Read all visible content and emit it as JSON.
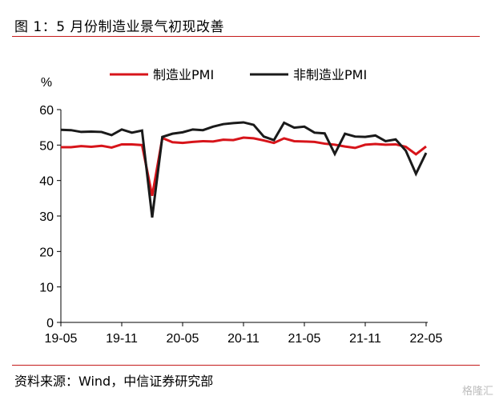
{
  "header": {
    "title": "图 1：5 月份制造业景气初现改善"
  },
  "footer": {
    "source": "资料来源：Wind，中信证券研究部",
    "watermark": "格隆汇"
  },
  "chart_data": {
    "type": "line",
    "ylabel": "%",
    "ylim": [
      0,
      60
    ],
    "yticks": [
      0,
      10,
      20,
      30,
      40,
      50,
      60
    ],
    "xtick_labels": [
      "19-05",
      "19-11",
      "20-05",
      "20-11",
      "21-05",
      "21-11",
      "22-05"
    ],
    "x": [
      "19-05",
      "19-06",
      "19-07",
      "19-08",
      "19-09",
      "19-10",
      "19-11",
      "19-12",
      "20-01",
      "20-02",
      "20-03",
      "20-04",
      "20-05",
      "20-06",
      "20-07",
      "20-08",
      "20-09",
      "20-10",
      "20-11",
      "20-12",
      "21-01",
      "21-02",
      "21-03",
      "21-04",
      "21-05",
      "21-06",
      "21-07",
      "21-08",
      "21-09",
      "21-10",
      "21-11",
      "21-12",
      "22-01",
      "22-02",
      "22-03",
      "22-04",
      "22-05"
    ],
    "legend_position": "top-center",
    "series": [
      {
        "name": "制造业PMI",
        "color": "#d7141a",
        "values": [
          49.4,
          49.4,
          49.7,
          49.5,
          49.8,
          49.3,
          50.2,
          50.2,
          50.0,
          35.7,
          52.0,
          50.8,
          50.6,
          50.9,
          51.1,
          51.0,
          51.5,
          51.4,
          52.1,
          51.9,
          51.3,
          50.6,
          51.9,
          51.1,
          51.0,
          50.9,
          50.4,
          50.1,
          49.6,
          49.2,
          50.1,
          50.3,
          50.1,
          50.2,
          49.5,
          47.4,
          49.6
        ]
      },
      {
        "name": "非制造业PMI",
        "color": "#1a1a1a",
        "values": [
          54.3,
          54.2,
          53.7,
          53.8,
          53.7,
          52.8,
          54.4,
          53.5,
          54.1,
          29.6,
          52.3,
          53.2,
          53.6,
          54.4,
          54.2,
          55.2,
          55.9,
          56.2,
          56.4,
          55.7,
          52.4,
          51.4,
          56.3,
          54.9,
          55.2,
          53.5,
          53.3,
          47.5,
          53.2,
          52.4,
          52.3,
          52.7,
          51.1,
          51.6,
          48.4,
          41.9,
          47.8
        ]
      }
    ]
  }
}
